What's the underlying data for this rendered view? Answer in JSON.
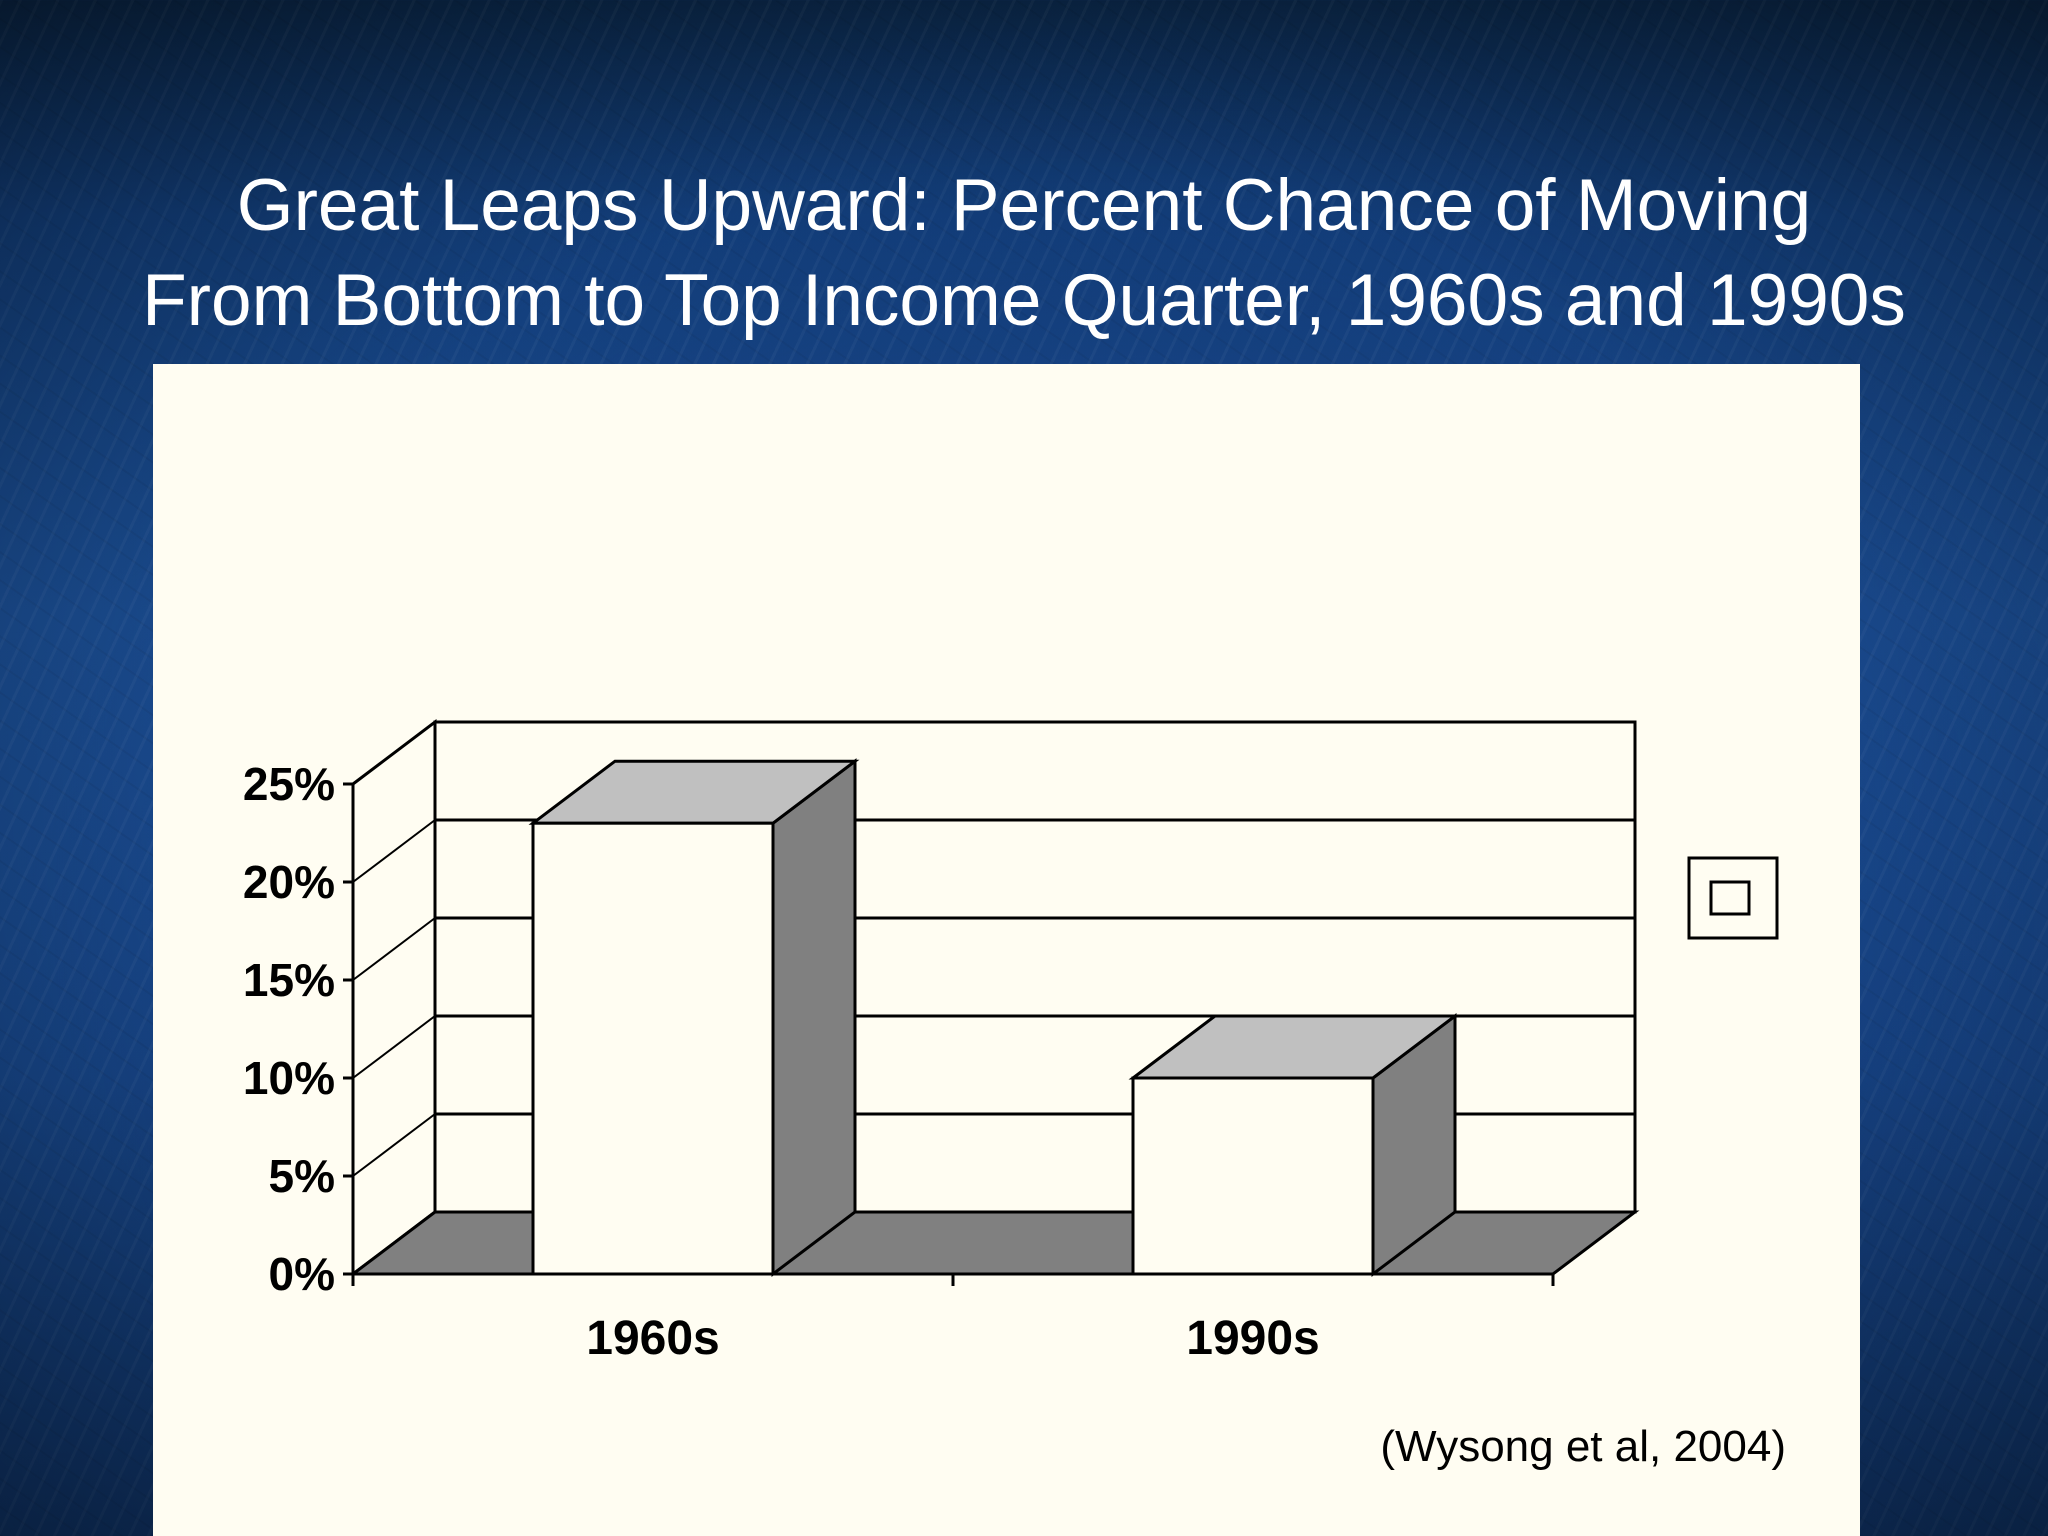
{
  "slide": {
    "title_line1": "Great Leaps Upward: Percent Chance of Moving",
    "title_line2": "From Bottom to Top Income Quarter, 1960s and 1990s",
    "background_color": "#174689",
    "title_color": "#ffffff"
  },
  "chart_data": {
    "type": "bar",
    "style": "3d-column",
    "categories": [
      "1960s",
      "1990s"
    ],
    "values": [
      23,
      10
    ],
    "ylim": [
      0,
      25
    ],
    "y_ticks": [
      0,
      5,
      10,
      15,
      20,
      25
    ],
    "y_tick_labels": [
      "0%",
      "5%",
      "10%",
      "15%",
      "20%",
      "25%"
    ],
    "title": "",
    "xlabel": "",
    "ylabel": "",
    "grid": true,
    "legend": "right",
    "legend_entries": [
      ""
    ],
    "source_note": "(Wysong et al, 2004)",
    "colors": {
      "panel": "#fffdf2",
      "bar_front": "#fffdf2",
      "bar_top": "#c0c0c0",
      "bar_side": "#808080",
      "floor": "#808080",
      "lines": "#000000"
    }
  }
}
